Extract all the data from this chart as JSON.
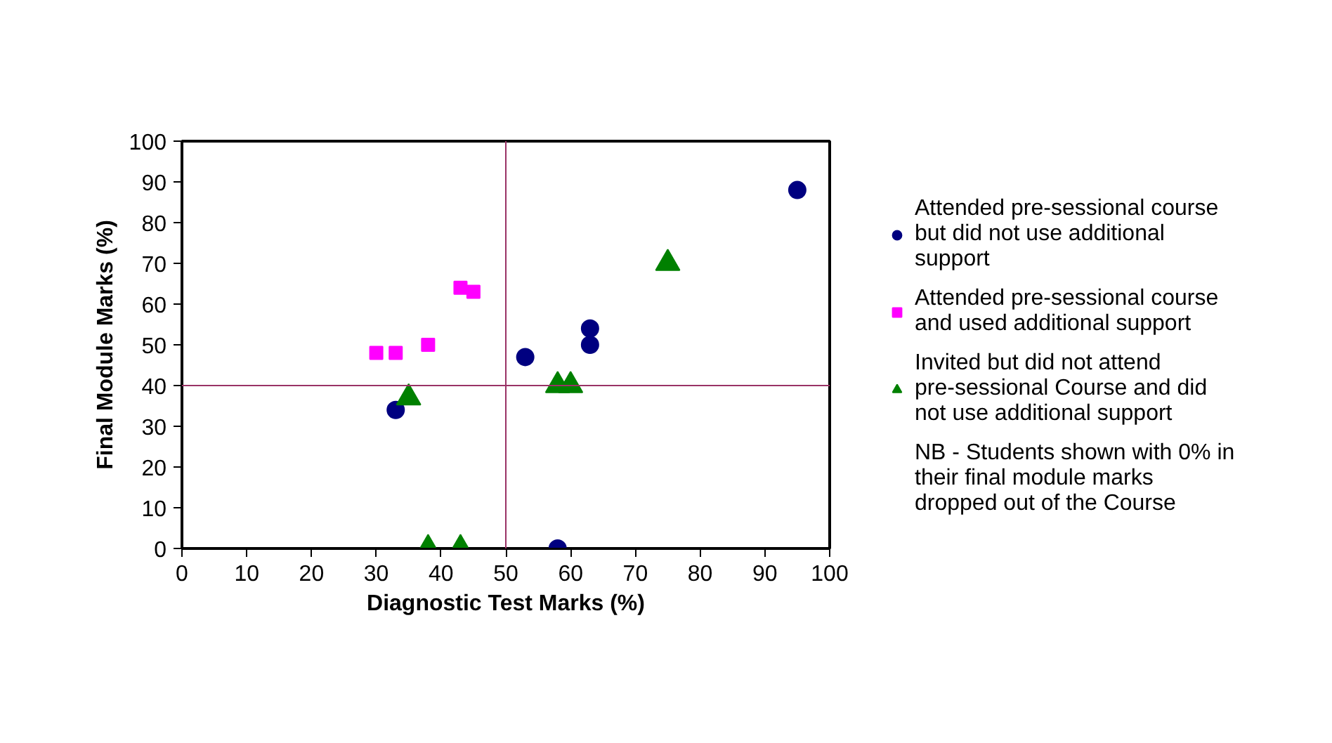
{
  "chart_data": {
    "type": "scatter",
    "xlabel": "Diagnostic Test Marks (%)",
    "ylabel": "Final Module Marks (%)",
    "xlim": [
      0,
      100
    ],
    "ylim": [
      0,
      100
    ],
    "xticks": [
      0,
      10,
      20,
      30,
      40,
      50,
      60,
      70,
      80,
      90,
      100
    ],
    "yticks": [
      0,
      10,
      20,
      30,
      40,
      50,
      60,
      70,
      80,
      90,
      100
    ],
    "grid": false,
    "legend": "right",
    "series": [
      {
        "name": "Attended pre-sessional course but did not use additional support",
        "color": "#000080",
        "marker": "circle",
        "x": [
          33,
          53,
          58,
          63,
          63,
          95
        ],
        "values": [
          34,
          47,
          0,
          54,
          50,
          88
        ]
      },
      {
        "name": "Attended pre-sessional course and used additional support",
        "color": "#ff00ff",
        "marker": "square",
        "x": [
          30,
          33,
          38,
          43,
          45
        ],
        "values": [
          48,
          48,
          50,
          64,
          63
        ]
      },
      {
        "name": "Invited but did not attend pre-sessional Course and did not use additional support",
        "color": "#008000",
        "marker": "triangle",
        "x": [
          35,
          38,
          43,
          58,
          60,
          75
        ],
        "values": [
          37,
          0,
          0,
          40,
          40,
          70
        ]
      }
    ],
    "ref_lines": [
      {
        "axis": "x",
        "value": 50,
        "label": null,
        "color": "#993366"
      },
      {
        "axis": "y",
        "value": 40,
        "label": null,
        "color": "#993366"
      }
    ],
    "annotations": [
      "NB - Students shown with 0% in their final module marks dropped out of the Course"
    ]
  }
}
